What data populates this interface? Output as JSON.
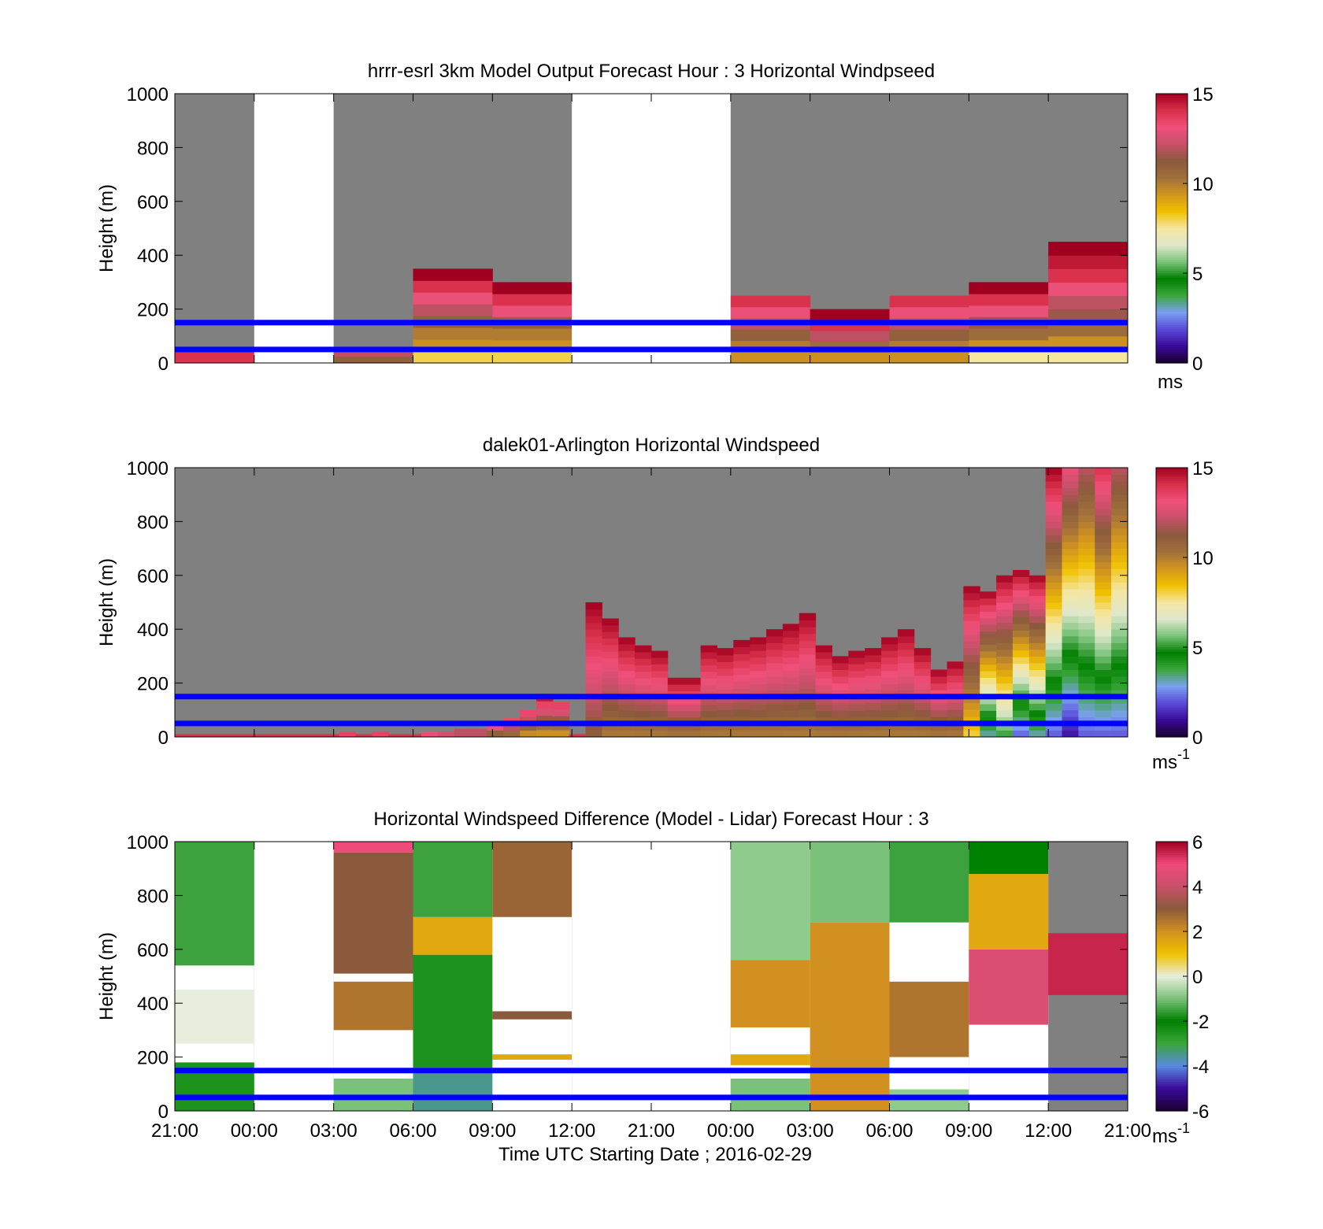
{
  "colors": {
    "background": "#ffffff",
    "nodata": "#808080",
    "reference_lines": "#0000ff",
    "speed_colormap": [
      "#1a0030",
      "#3a0a9a",
      "#5a4ad8",
      "#7aa0f0",
      "#3aa63a",
      "#008000",
      "#7ac27a",
      "#dfe8cc",
      "#f5e6a0",
      "#f0c000",
      "#d2951e",
      "#a0703c",
      "#8b5a3c",
      "#c8506a",
      "#f0507a",
      "#d8304a",
      "#a00020"
    ],
    "diff_colormap": [
      "#1a0030",
      "#3a0a9a",
      "#5a8ae0",
      "#3aa63a",
      "#008000",
      "#7ac27a",
      "#e8eedd",
      "#f0c000",
      "#d29020",
      "#8b5a3c",
      "#c8506a",
      "#f04a7a",
      "#a00020"
    ]
  },
  "x_ticks": [
    "21:00",
    "00:00",
    "03:00",
    "06:00",
    "09:00",
    "12:00",
    "21:00",
    "00:00",
    "03:00",
    "06:00",
    "09:00",
    "12:00",
    "21:00"
  ],
  "x_label": "Time UTC  Starting Date ; 2016-02-29",
  "y_label": "Height (m)",
  "y_ticks": [
    "1000",
    "800",
    "600",
    "400",
    "200",
    "0"
  ],
  "reference_heights_m": [
    150,
    50
  ],
  "chart_data": [
    {
      "type": "heatmap",
      "title": "hrrr-esrl 3km Model Output   Forecast Hour : 3 Horizontal Windpseed",
      "ylabel": "Height (m)",
      "ylim": [
        0,
        1000
      ],
      "colorbar": {
        "ticks": [
          "15",
          "10",
          "5",
          "0"
        ],
        "range": [
          0,
          15
        ],
        "unit_label": "ms"
      },
      "columns": [
        {
          "time": "21:00",
          "top_m": 50,
          "speed_ms": [
            14,
            14
          ]
        },
        {
          "time": "00:00",
          "missing": true
        },
        {
          "time": "03:00",
          "top_m": 50,
          "speed_ms": [
            11,
            12
          ]
        },
        {
          "time": "06:00",
          "top_m": 350,
          "speed_ms": [
            8,
            9.5,
            10,
            11,
            12,
            13,
            14,
            15
          ]
        },
        {
          "time": "09:00",
          "top_m": 300,
          "speed_ms": [
            8,
            9.5,
            10,
            11,
            13,
            14,
            15
          ]
        },
        {
          "time": "12:00",
          "missing": true
        },
        {
          "time": "21:00",
          "missing": true
        },
        {
          "time": "00:00",
          "top_m": 250,
          "speed_ms": [
            9.5,
            10,
            11,
            12,
            13,
            14
          ]
        },
        {
          "time": "03:00",
          "top_m": 200,
          "speed_ms": [
            9.5,
            10.5,
            12,
            14,
            15
          ]
        },
        {
          "time": "06:00",
          "top_m": 250,
          "speed_ms": [
            9.5,
            10,
            11,
            12,
            13,
            14
          ]
        },
        {
          "time": "09:00",
          "top_m": 300,
          "speed_ms": [
            7.5,
            9.5,
            10.5,
            11.5,
            13,
            14,
            15
          ]
        },
        {
          "time": "12:00",
          "top_m": 450,
          "speed_ms": [
            7.5,
            9.5,
            10.5,
            11.5,
            12,
            13,
            14,
            14.5,
            15
          ]
        }
      ]
    },
    {
      "type": "heatmap",
      "title": "dalek01-Arlington  Horizontal Windspeed",
      "ylabel": "Height (m)",
      "ylim": [
        0,
        1000
      ],
      "colorbar": {
        "ticks": [
          "15",
          "10",
          "5",
          "0"
        ],
        "range": [
          0,
          15
        ],
        "unit_label": "ms",
        "unit_exponent": "-1"
      },
      "profile_tops_m": [
        10,
        10,
        10,
        10,
        10,
        10,
        10,
        10,
        10,
        10,
        20,
        10,
        20,
        10,
        10,
        20,
        20,
        30,
        30,
        50,
        70,
        100,
        160,
        130,
        10,
        500,
        440,
        370,
        340,
        320,
        220,
        220,
        340,
        330,
        360,
        370,
        400,
        420,
        460,
        340,
        300,
        320,
        330,
        370,
        400,
        330,
        250,
        280,
        560,
        540,
        600,
        620,
        600,
        1000,
        1000,
        1000,
        1000,
        1000
      ],
      "profile_speed_range_ms": [
        [
          14,
          14
        ],
        [
          14,
          14
        ],
        [
          14,
          14
        ],
        [
          14,
          14
        ],
        [
          14,
          14
        ],
        [
          14,
          14
        ],
        [
          14,
          14
        ],
        [
          14,
          14
        ],
        [
          14,
          14
        ],
        [
          14,
          14
        ],
        [
          13,
          14
        ],
        [
          14,
          14
        ],
        [
          13,
          14
        ],
        [
          14,
          14
        ],
        [
          14,
          14
        ],
        [
          12,
          14
        ],
        [
          11,
          14
        ],
        [
          10,
          14
        ],
        [
          10,
          14
        ],
        [
          10,
          14
        ],
        [
          10,
          14
        ],
        [
          9,
          14
        ],
        [
          9,
          15
        ],
        [
          9,
          14
        ],
        [
          14,
          14
        ],
        [
          11,
          15
        ],
        [
          10,
          15
        ],
        [
          10,
          15
        ],
        [
          10,
          15
        ],
        [
          10,
          15
        ],
        [
          10,
          15
        ],
        [
          10,
          15
        ],
        [
          10,
          15
        ],
        [
          10,
          15
        ],
        [
          10,
          15
        ],
        [
          10,
          15
        ],
        [
          10,
          15
        ],
        [
          10,
          15
        ],
        [
          10,
          15
        ],
        [
          10,
          15
        ],
        [
          10,
          15
        ],
        [
          10,
          15
        ],
        [
          10,
          15
        ],
        [
          10,
          15
        ],
        [
          10,
          15
        ],
        [
          10,
          15
        ],
        [
          10,
          15
        ],
        [
          10,
          15
        ],
        [
          8,
          15
        ],
        [
          3,
          15
        ],
        [
          5,
          15
        ],
        [
          2,
          15
        ],
        [
          3,
          15
        ],
        [
          2,
          15
        ],
        [
          1,
          13
        ],
        [
          2,
          12
        ],
        [
          2,
          14
        ],
        [
          2,
          12
        ]
      ]
    },
    {
      "type": "heatmap",
      "title": "Horizontal Windspeed Difference (Model - Lidar) Forecast Hour : 3",
      "ylabel": "Height (m)",
      "ylim": [
        0,
        1000
      ],
      "colorbar": {
        "ticks": [
          "6",
          "4",
          "2",
          "0",
          "-2",
          "-4",
          "-6"
        ],
        "range": [
          -6,
          6
        ],
        "unit_label": "ms",
        "unit_exponent": "-1"
      },
      "columns": [
        {
          "time": "21:00",
          "segments": [
            {
              "from_m": 0,
              "to_m": 180,
              "diff_ms": -2.5
            },
            {
              "from_m": 250,
              "to_m": 450,
              "diff_ms": 0
            },
            {
              "from_m": 540,
              "to_m": 1000,
              "diff_ms": -1.5
            }
          ]
        },
        {
          "time": "00:00",
          "missing": true
        },
        {
          "time": "03:00",
          "segments": [
            {
              "from_m": 0,
              "to_m": 120,
              "diff_ms": -1
            },
            {
              "from_m": 300,
              "to_m": 480,
              "diff_ms": 2.5
            },
            {
              "from_m": 510,
              "to_m": 960,
              "diff_ms": 3
            },
            {
              "from_m": 960,
              "to_m": 1000,
              "diff_ms": 5
            }
          ]
        },
        {
          "time": "06:00",
          "segments": [
            {
              "from_m": 0,
              "to_m": 140,
              "diff_ms": -3.5
            },
            {
              "from_m": 160,
              "to_m": 580,
              "diff_ms": -2.5
            },
            {
              "from_m": 580,
              "to_m": 720,
              "diff_ms": 1.5
            },
            {
              "from_m": 720,
              "to_m": 1000,
              "diff_ms": -1.5
            }
          ]
        },
        {
          "time": "09:00",
          "segments": [
            {
              "from_m": 190,
              "to_m": 210,
              "diff_ms": 1.5
            },
            {
              "from_m": 340,
              "to_m": 370,
              "diff_ms": 3
            },
            {
              "from_m": 720,
              "to_m": 1000,
              "diff_ms": 2.8
            }
          ]
        },
        {
          "time": "12:00",
          "missing": true
        },
        {
          "time": "21:00",
          "missing": true
        },
        {
          "time": "00:00",
          "segments": [
            {
              "from_m": 0,
              "to_m": 120,
              "diff_ms": -1
            },
            {
              "from_m": 170,
              "to_m": 210,
              "diff_ms": 1.5
            },
            {
              "from_m": 310,
              "to_m": 560,
              "diff_ms": 2
            },
            {
              "from_m": 560,
              "to_m": 1000,
              "diff_ms": -0.8
            }
          ]
        },
        {
          "time": "03:00",
          "segments": [
            {
              "from_m": 0,
              "to_m": 700,
              "diff_ms": 2
            },
            {
              "from_m": 700,
              "to_m": 1000,
              "diff_ms": -1
            }
          ]
        },
        {
          "time": "06:00",
          "segments": [
            {
              "from_m": 0,
              "to_m": 80,
              "diff_ms": -0.8
            },
            {
              "from_m": 200,
              "to_m": 480,
              "diff_ms": 2.5
            },
            {
              "from_m": 700,
              "to_m": 1000,
              "diff_ms": -1.5
            }
          ]
        },
        {
          "time": "09:00",
          "segments": [
            {
              "from_m": 320,
              "to_m": 600,
              "diff_ms": 4.5
            },
            {
              "from_m": 600,
              "to_m": 880,
              "diff_ms": 1.5
            },
            {
              "from_m": 880,
              "to_m": 1000,
              "diff_ms": -2
            }
          ]
        },
        {
          "time": "12:00",
          "segments": [
            {
              "from_m": 430,
              "to_m": 660,
              "diff_ms": 5.5
            }
          ]
        }
      ]
    }
  ]
}
